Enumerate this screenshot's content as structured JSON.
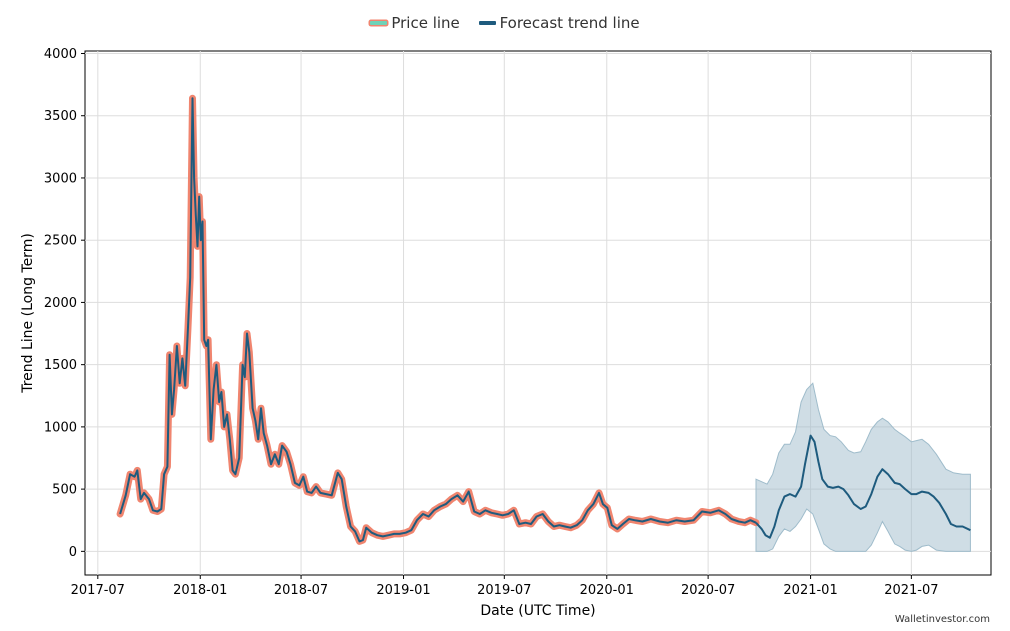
{
  "legend": {
    "price": "Price line",
    "forecast": "Forecast trend line"
  },
  "watermark": "Walletinvestor.com",
  "colors": {
    "price": "#f0856f",
    "price_legend_outer": "#f0856f",
    "price_legend_inner": "#6fd3b8",
    "trend": "#1e5b7e",
    "band": "#9fbccb",
    "grid": "#dddddd"
  },
  "chart_data": {
    "type": "line",
    "xlabel": "Date (UTC Time)",
    "ylabel": "Trend Line (Long Term)",
    "ylim": [
      -190,
      4020
    ],
    "xlim": [
      "2017-06-08",
      "2021-11-21"
    ],
    "yticks": [
      0,
      500,
      1000,
      1500,
      2000,
      2500,
      3000,
      3500,
      4000
    ],
    "xticks": [
      "2017-07",
      "2018-01",
      "2018-07",
      "2019-01",
      "2019-07",
      "2020-01",
      "2020-07",
      "2021-01",
      "2021-07"
    ],
    "grid": true,
    "legend_position": "top-center",
    "series": [
      {
        "name": "Price line",
        "style": "thick-line",
        "points": [
          [
            "2017-08-10",
            300
          ],
          [
            "2017-08-20",
            450
          ],
          [
            "2017-08-28",
            620
          ],
          [
            "2017-09-05",
            600
          ],
          [
            "2017-09-10",
            650
          ],
          [
            "2017-09-16",
            420
          ],
          [
            "2017-09-22",
            470
          ],
          [
            "2017-10-01",
            420
          ],
          [
            "2017-10-08",
            330
          ],
          [
            "2017-10-16",
            320
          ],
          [
            "2017-10-23",
            340
          ],
          [
            "2017-10-28",
            620
          ],
          [
            "2017-11-03",
            680
          ],
          [
            "2017-11-07",
            1580
          ],
          [
            "2017-11-11",
            1100
          ],
          [
            "2017-11-15",
            1300
          ],
          [
            "2017-11-20",
            1650
          ],
          [
            "2017-11-25",
            1350
          ],
          [
            "2017-11-30",
            1550
          ],
          [
            "2017-12-05",
            1330
          ],
          [
            "2017-12-10",
            1800
          ],
          [
            "2017-12-14",
            2200
          ],
          [
            "2017-12-18",
            3640
          ],
          [
            "2017-12-21",
            3000
          ],
          [
            "2017-12-24",
            2700
          ],
          [
            "2017-12-27",
            2450
          ],
          [
            "2017-12-30",
            2850
          ],
          [
            "2018-01-02",
            2500
          ],
          [
            "2018-01-05",
            2650
          ],
          [
            "2018-01-08",
            1700
          ],
          [
            "2018-01-12",
            1650
          ],
          [
            "2018-01-15",
            1700
          ],
          [
            "2018-01-20",
            900
          ],
          [
            "2018-01-25",
            1300
          ],
          [
            "2018-01-30",
            1500
          ],
          [
            "2018-02-04",
            1200
          ],
          [
            "2018-02-08",
            1280
          ],
          [
            "2018-02-13",
            1000
          ],
          [
            "2018-02-18",
            1100
          ],
          [
            "2018-02-23",
            900
          ],
          [
            "2018-02-28",
            650
          ],
          [
            "2018-03-05",
            620
          ],
          [
            "2018-03-12",
            750
          ],
          [
            "2018-03-18",
            1500
          ],
          [
            "2018-03-22",
            1400
          ],
          [
            "2018-03-26",
            1750
          ],
          [
            "2018-03-30",
            1600
          ],
          [
            "2018-04-05",
            1150
          ],
          [
            "2018-04-10",
            1050
          ],
          [
            "2018-04-15",
            900
          ],
          [
            "2018-04-20",
            1150
          ],
          [
            "2018-04-25",
            950
          ],
          [
            "2018-05-01",
            850
          ],
          [
            "2018-05-08",
            700
          ],
          [
            "2018-05-15",
            780
          ],
          [
            "2018-05-22",
            700
          ],
          [
            "2018-05-28",
            850
          ],
          [
            "2018-06-05",
            800
          ],
          [
            "2018-06-12",
            700
          ],
          [
            "2018-06-20",
            550
          ],
          [
            "2018-06-28",
            530
          ],
          [
            "2018-07-05",
            600
          ],
          [
            "2018-07-12",
            480
          ],
          [
            "2018-07-20",
            470
          ],
          [
            "2018-07-28",
            520
          ],
          [
            "2018-08-05",
            470
          ],
          [
            "2018-08-15",
            460
          ],
          [
            "2018-08-25",
            450
          ],
          [
            "2018-09-05",
            630
          ],
          [
            "2018-09-12",
            580
          ],
          [
            "2018-09-20",
            360
          ],
          [
            "2018-09-28",
            200
          ],
          [
            "2018-10-06",
            160
          ],
          [
            "2018-10-14",
            80
          ],
          [
            "2018-10-20",
            90
          ],
          [
            "2018-10-26",
            190
          ],
          [
            "2018-11-05",
            150
          ],
          [
            "2018-11-15",
            130
          ],
          [
            "2018-11-25",
            120
          ],
          [
            "2018-12-05",
            130
          ],
          [
            "2018-12-15",
            140
          ],
          [
            "2018-12-25",
            140
          ],
          [
            "2019-01-05",
            150
          ],
          [
            "2019-01-15",
            170
          ],
          [
            "2019-01-25",
            250
          ],
          [
            "2019-02-05",
            300
          ],
          [
            "2019-02-15",
            280
          ],
          [
            "2019-02-25",
            330
          ],
          [
            "2019-03-08",
            360
          ],
          [
            "2019-03-18",
            380
          ],
          [
            "2019-03-28",
            420
          ],
          [
            "2019-04-08",
            450
          ],
          [
            "2019-04-18",
            400
          ],
          [
            "2019-04-28",
            480
          ],
          [
            "2019-05-08",
            320
          ],
          [
            "2019-05-18",
            300
          ],
          [
            "2019-05-28",
            330
          ],
          [
            "2019-06-08",
            310
          ],
          [
            "2019-06-18",
            300
          ],
          [
            "2019-06-28",
            290
          ],
          [
            "2019-07-08",
            300
          ],
          [
            "2019-07-18",
            330
          ],
          [
            "2019-07-28",
            220
          ],
          [
            "2019-08-08",
            230
          ],
          [
            "2019-08-18",
            220
          ],
          [
            "2019-08-28",
            280
          ],
          [
            "2019-09-08",
            300
          ],
          [
            "2019-09-18",
            240
          ],
          [
            "2019-09-28",
            200
          ],
          [
            "2019-10-08",
            210
          ],
          [
            "2019-10-18",
            200
          ],
          [
            "2019-10-28",
            190
          ],
          [
            "2019-11-08",
            210
          ],
          [
            "2019-11-18",
            250
          ],
          [
            "2019-11-28",
            330
          ],
          [
            "2019-12-08",
            380
          ],
          [
            "2019-12-18",
            470
          ],
          [
            "2019-12-25",
            380
          ],
          [
            "2020-01-02",
            350
          ],
          [
            "2020-01-10",
            210
          ],
          [
            "2020-01-20",
            180
          ],
          [
            "2020-01-30",
            220
          ],
          [
            "2020-02-10",
            260
          ],
          [
            "2020-02-20",
            250
          ],
          [
            "2020-03-05",
            240
          ],
          [
            "2020-03-20",
            260
          ],
          [
            "2020-04-05",
            240
          ],
          [
            "2020-04-20",
            230
          ],
          [
            "2020-05-05",
            250
          ],
          [
            "2020-05-20",
            240
          ],
          [
            "2020-06-05",
            250
          ],
          [
            "2020-06-20",
            320
          ],
          [
            "2020-07-05",
            310
          ],
          [
            "2020-07-20",
            330
          ],
          [
            "2020-08-01",
            300
          ],
          [
            "2020-08-12",
            260
          ],
          [
            "2020-08-25",
            240
          ],
          [
            "2020-09-05",
            230
          ],
          [
            "2020-09-15",
            250
          ],
          [
            "2020-09-25",
            230
          ]
        ]
      },
      {
        "name": "Forecast trend line",
        "style": "line",
        "points": [
          [
            "2020-09-25",
            230
          ],
          [
            "2020-10-05",
            180
          ],
          [
            "2020-10-12",
            130
          ],
          [
            "2020-10-20",
            110
          ],
          [
            "2020-10-28",
            200
          ],
          [
            "2020-11-05",
            330
          ],
          [
            "2020-11-15",
            440
          ],
          [
            "2020-11-25",
            460
          ],
          [
            "2020-12-05",
            440
          ],
          [
            "2020-12-15",
            520
          ],
          [
            "2020-12-22",
            700
          ],
          [
            "2021-01-01",
            930
          ],
          [
            "2021-01-08",
            880
          ],
          [
            "2021-01-15",
            720
          ],
          [
            "2021-01-22",
            580
          ],
          [
            "2021-02-01",
            520
          ],
          [
            "2021-02-10",
            510
          ],
          [
            "2021-02-20",
            520
          ],
          [
            "2021-03-01",
            500
          ],
          [
            "2021-03-10",
            450
          ],
          [
            "2021-03-20",
            380
          ],
          [
            "2021-04-01",
            340
          ],
          [
            "2021-04-10",
            360
          ],
          [
            "2021-04-20",
            460
          ],
          [
            "2021-05-01",
            600
          ],
          [
            "2021-05-10",
            660
          ],
          [
            "2021-05-20",
            620
          ],
          [
            "2021-06-01",
            550
          ],
          [
            "2021-06-10",
            540
          ],
          [
            "2021-06-20",
            500
          ],
          [
            "2021-07-01",
            460
          ],
          [
            "2021-07-10",
            460
          ],
          [
            "2021-07-20",
            480
          ],
          [
            "2021-08-01",
            470
          ],
          [
            "2021-08-10",
            440
          ],
          [
            "2021-08-20",
            390
          ],
          [
            "2021-09-01",
            300
          ],
          [
            "2021-09-10",
            220
          ],
          [
            "2021-09-20",
            200
          ],
          [
            "2021-10-01",
            200
          ],
          [
            "2021-10-15",
            170
          ]
        ]
      }
    ],
    "confidence_band": [
      [
        "2020-09-25",
        0,
        580
      ],
      [
        "2020-10-05",
        0,
        560
      ],
      [
        "2020-10-15",
        0,
        540
      ],
      [
        "2020-10-25",
        20,
        620
      ],
      [
        "2020-11-05",
        120,
        790
      ],
      [
        "2020-11-15",
        180,
        860
      ],
      [
        "2020-11-25",
        160,
        860
      ],
      [
        "2020-12-05",
        200,
        960
      ],
      [
        "2020-12-15",
        260,
        1200
      ],
      [
        "2020-12-25",
        340,
        1300
      ],
      [
        "2021-01-05",
        300,
        1350
      ],
      [
        "2021-01-15",
        180,
        1140
      ],
      [
        "2021-01-25",
        60,
        980
      ],
      [
        "2021-02-05",
        20,
        930
      ],
      [
        "2021-02-15",
        0,
        920
      ],
      [
        "2021-02-25",
        0,
        880
      ],
      [
        "2021-03-10",
        0,
        810
      ],
      [
        "2021-03-20",
        0,
        790
      ],
      [
        "2021-04-01",
        0,
        800
      ],
      [
        "2021-04-10",
        0,
        880
      ],
      [
        "2021-04-20",
        50,
        980
      ],
      [
        "2021-05-01",
        150,
        1040
      ],
      [
        "2021-05-10",
        240,
        1070
      ],
      [
        "2021-05-20",
        160,
        1040
      ],
      [
        "2021-06-01",
        60,
        980
      ],
      [
        "2021-06-10",
        40,
        950
      ],
      [
        "2021-06-20",
        10,
        920
      ],
      [
        "2021-07-01",
        0,
        880
      ],
      [
        "2021-07-10",
        10,
        890
      ],
      [
        "2021-07-20",
        40,
        900
      ],
      [
        "2021-08-01",
        50,
        860
      ],
      [
        "2021-08-15",
        10,
        780
      ],
      [
        "2021-09-01",
        0,
        660
      ],
      [
        "2021-09-15",
        0,
        630
      ],
      [
        "2021-10-01",
        0,
        620
      ],
      [
        "2021-10-15",
        0,
        620
      ]
    ]
  }
}
